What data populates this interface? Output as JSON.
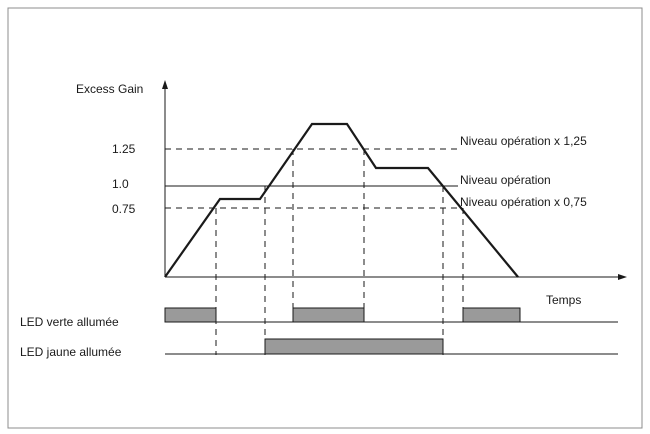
{
  "chart_data": {
    "type": "line",
    "ylabel": "Excess Gain",
    "xlabel": "Temps",
    "y_ticks": [
      "1.25",
      "1.0",
      "0.75"
    ],
    "levels": [
      {
        "label": "Niveau opération x 1,25",
        "value": 1.25,
        "style": "dashed"
      },
      {
        "label": "Niveau opération",
        "value": 1.0,
        "style": "solid"
      },
      {
        "label": "Niveau opération x 0,75",
        "value": 0.75,
        "style": "dashed"
      }
    ],
    "leds": [
      {
        "label": "LED verte allumée"
      },
      {
        "label": "LED jaune allumée"
      }
    ],
    "colors": {
      "line": "#1a1a1a",
      "led_fill": "#9a9a9a",
      "frame": "#8c8c8c"
    }
  }
}
